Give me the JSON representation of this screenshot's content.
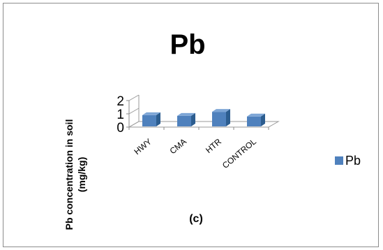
{
  "chart_data": {
    "type": "bar",
    "title": "Pb",
    "ylabel": "Pb concentration in soil (mg/kg)",
    "ylabel_lines": [
      "Pb concentration in soil",
      "(mg/kg)"
    ],
    "categories": [
      "HWY",
      "CMA",
      "HTR",
      "CONTROL"
    ],
    "series": [
      {
        "name": "Pb",
        "values": [
          0.9,
          0.85,
          1.15,
          0.8
        ]
      }
    ],
    "yticks": [
      "0",
      "1",
      "2"
    ],
    "ylim": [
      0,
      2
    ],
    "grid": false,
    "legend": "right",
    "annotation": "(c)",
    "bar_color": "#4f81bd"
  }
}
